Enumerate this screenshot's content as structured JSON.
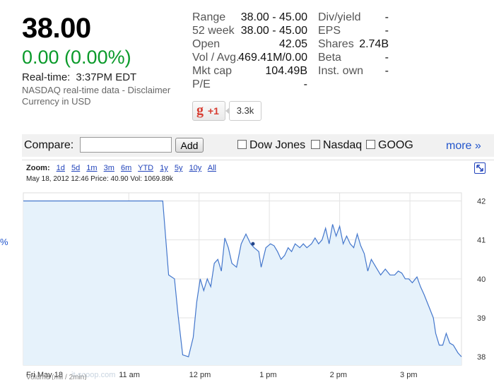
{
  "quote": {
    "price": "38.00",
    "change": "0.00 (0.00%)",
    "realtime_label": "Real-time:",
    "realtime_time": "3:37PM EDT",
    "source": "NASDAQ real-time data - Disclaimer",
    "currency": "Currency in USD"
  },
  "stats_col1": [
    {
      "label": "Range",
      "value": "38.00 - 45.00"
    },
    {
      "label": "52 week",
      "value": "38.00 - 45.00"
    },
    {
      "label": "Open",
      "value": "42.05"
    },
    {
      "label": "Vol / Avg.",
      "value": "469.41M/0.00"
    },
    {
      "label": "Mkt cap",
      "value": "104.49B"
    },
    {
      "label": "P/E",
      "value": "-"
    }
  ],
  "stats_col2": [
    {
      "label": "Div/yield",
      "value": "-"
    },
    {
      "label": "EPS",
      "value": "-"
    },
    {
      "label": "Shares",
      "value": "2.74B"
    },
    {
      "label": "Beta",
      "value": "-"
    },
    {
      "label": "Inst. own",
      "value": "-"
    }
  ],
  "social": {
    "plus_label": "+1",
    "count": "3.3k"
  },
  "compare": {
    "label": "Compare:",
    "input_value": "",
    "add_label": "Add",
    "options": [
      "Dow Jones",
      "Nasdaq",
      "GOOG"
    ],
    "more_label": "more »"
  },
  "chart": {
    "zoom_label": "Zoom:",
    "zoom_options": [
      "1d",
      "5d",
      "1m",
      "3m",
      "6m",
      "YTD",
      "1y",
      "5y",
      "10y",
      "All"
    ],
    "info_line": "May 18, 2012 12:46 Price: 40.90 Vol: 1069.89k",
    "watermark": "it-scoop.com",
    "volume_label": "Volume (mil / 2min)",
    "left_label": "%"
  },
  "chart_data": {
    "type": "area",
    "title": "",
    "xlabel": "",
    "ylabel": "",
    "x_ticks": [
      "Fri May 18",
      "11 am",
      "12 pm",
      "1 pm",
      "2 pm",
      "3 pm"
    ],
    "y_ticks": [
      "42",
      "41",
      "40",
      "39",
      "38"
    ],
    "ylim": [
      37.93,
      42.1
    ],
    "grid": true,
    "x_unit": "minutes after 9:30 ET",
    "xlim": [
      0,
      374
    ],
    "series": [
      {
        "points": [
          [
            0,
            42
          ],
          [
            119,
            42
          ],
          [
            124,
            40.1
          ],
          [
            129,
            40.0
          ],
          [
            132,
            39.1
          ],
          [
            136,
            38.05
          ],
          [
            141,
            38.0
          ],
          [
            145,
            38.5
          ],
          [
            148,
            39.4
          ],
          [
            151,
            40.0
          ],
          [
            154,
            39.7
          ],
          [
            157,
            40.0
          ],
          [
            160,
            39.8
          ],
          [
            163,
            40.4
          ],
          [
            166,
            40.5
          ],
          [
            169,
            40.2
          ],
          [
            172,
            41.05
          ],
          [
            175,
            40.8
          ],
          [
            178,
            40.4
          ],
          [
            182,
            40.3
          ],
          [
            186,
            40.9
          ],
          [
            190,
            41.15
          ],
          [
            194,
            40.9
          ],
          [
            197,
            40.8
          ],
          [
            201,
            40.7
          ],
          [
            203,
            40.3
          ],
          [
            207,
            40.8
          ],
          [
            211,
            40.9
          ],
          [
            214,
            40.85
          ],
          [
            217,
            40.7
          ],
          [
            220,
            40.5
          ],
          [
            223,
            40.6
          ],
          [
            226,
            40.8
          ],
          [
            229,
            40.7
          ],
          [
            232,
            40.9
          ],
          [
            236,
            40.8
          ],
          [
            239,
            40.9
          ],
          [
            242,
            40.8
          ],
          [
            246,
            40.9
          ],
          [
            249,
            41.05
          ],
          [
            252,
            40.9
          ],
          [
            255,
            41.0
          ],
          [
            258,
            41.3
          ],
          [
            261,
            40.9
          ],
          [
            264,
            41.4
          ],
          [
            267,
            41.1
          ],
          [
            270,
            41.35
          ],
          [
            273,
            40.9
          ],
          [
            276,
            41.1
          ],
          [
            279,
            40.9
          ],
          [
            282,
            40.8
          ],
          [
            285,
            41.15
          ],
          [
            288,
            40.85
          ],
          [
            291,
            40.65
          ],
          [
            294,
            40.2
          ],
          [
            297,
            40.5
          ],
          [
            301,
            40.3
          ],
          [
            305,
            40.1
          ],
          [
            309,
            40.25
          ],
          [
            313,
            40.1
          ],
          [
            317,
            40.1
          ],
          [
            320,
            40.2
          ],
          [
            323,
            40.15
          ],
          [
            326,
            40.0
          ],
          [
            329,
            40.0
          ],
          [
            332,
            39.9
          ],
          [
            336,
            40.05
          ],
          [
            339,
            39.8
          ],
          [
            342,
            39.6
          ],
          [
            346,
            39.3
          ],
          [
            350,
            39.0
          ],
          [
            352,
            38.6
          ],
          [
            355,
            38.3
          ],
          [
            358,
            38.3
          ],
          [
            361,
            38.6
          ],
          [
            364,
            38.35
          ],
          [
            367,
            38.3
          ],
          [
            371,
            38.1
          ],
          [
            374,
            38.0
          ]
        ]
      }
    ],
    "marker": {
      "x": 196,
      "y": 40.9
    }
  },
  "colors": {
    "price_up": "#0a9a2a",
    "line": "#4477cc",
    "fill": "#e6f2fb",
    "link": "#2244bb"
  }
}
